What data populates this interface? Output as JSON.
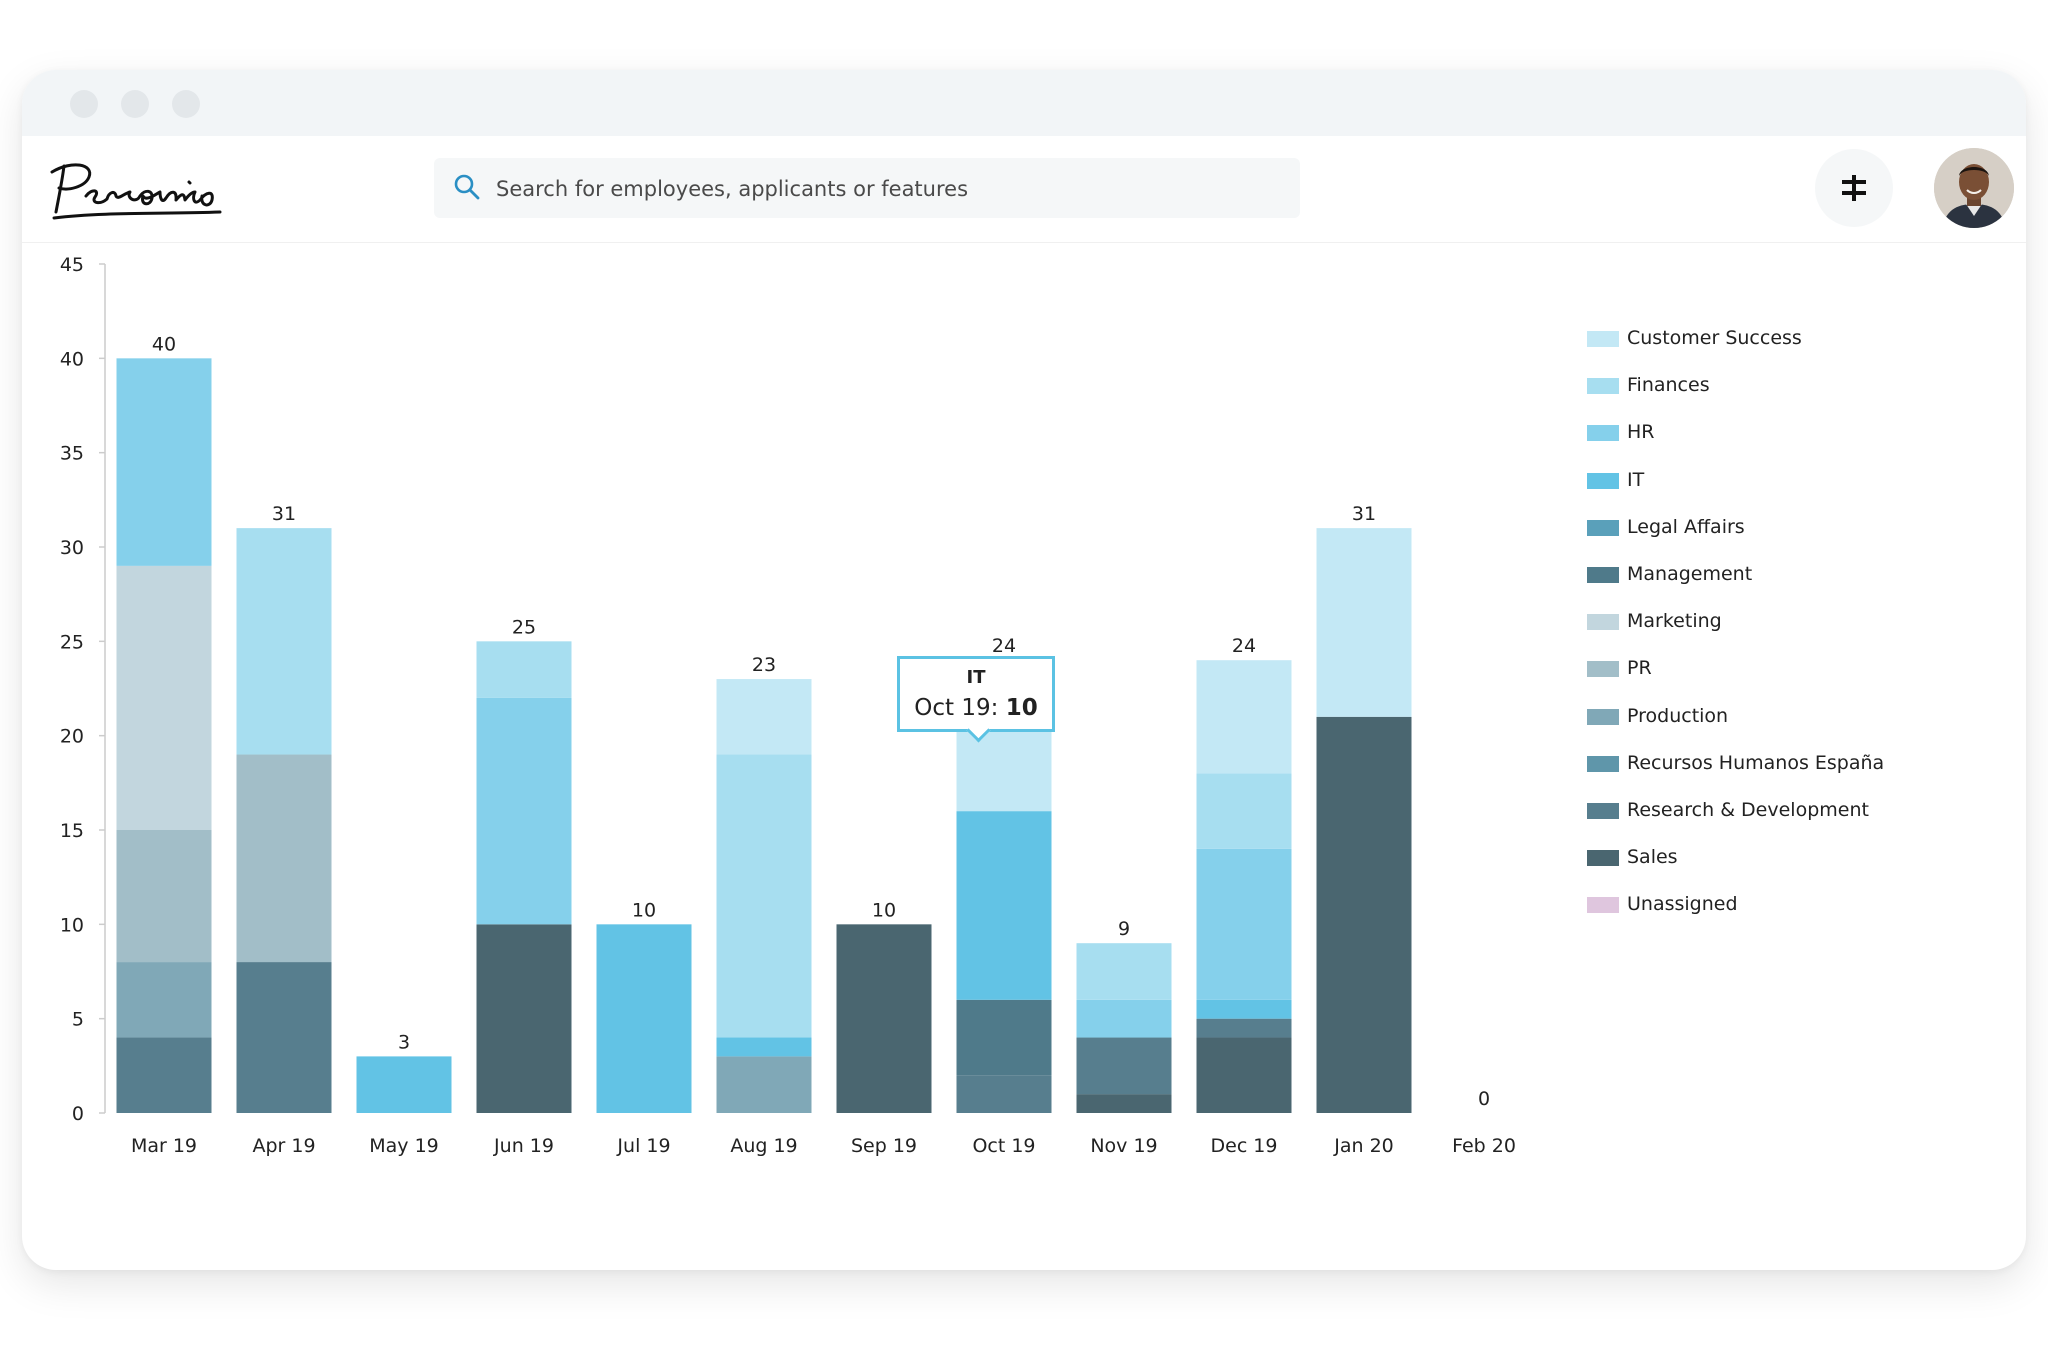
{
  "header": {
    "logo_text": "Personio",
    "search": {
      "placeholder": "Search for employees, applicants or features"
    }
  },
  "icons": {
    "search": "search-icon",
    "settings": "sliders-icon",
    "avatar": "user-avatar",
    "window_controls": "traffic-light-dots"
  },
  "colors": {
    "accent": "#5bc2e3",
    "Customer Success": "#c3e8f5",
    "Finances": "#a7def0",
    "HR": "#85d0eb",
    "IT": "#62c3e5",
    "Legal Affairs": "#5aa0ba",
    "Management": "#4f7a8a",
    "Marketing": "#c2d6de",
    "PR": "#a2bec8",
    "Production": "#80a8b7",
    "Recursos Humanos España": "#5f96aa",
    "Research & Development": "#577e8e",
    "Sales": "#4a6670",
    "Unassigned": "#dfc6de"
  },
  "chart_data": {
    "type": "bar",
    "stacked": true,
    "categories": [
      "Mar 19",
      "Apr 19",
      "May 19",
      "Jun 19",
      "Jul 19",
      "Aug 19",
      "Sep 19",
      "Oct 19",
      "Nov 19",
      "Dec 19",
      "Jan 20",
      "Feb 20"
    ],
    "totals": [
      40,
      31,
      3,
      25,
      10,
      23,
      10,
      24,
      9,
      24,
      31,
      0
    ],
    "series": [
      {
        "name": "Customer Success",
        "values": [
          0,
          0,
          0,
          0,
          0,
          4,
          0,
          8,
          0,
          6,
          10,
          0
        ]
      },
      {
        "name": "Finances",
        "values": [
          0,
          12,
          0,
          3,
          0,
          15,
          0,
          0,
          3,
          4,
          0,
          0
        ]
      },
      {
        "name": "HR",
        "values": [
          11,
          0,
          0,
          12,
          0,
          0,
          0,
          0,
          2,
          8,
          0,
          0
        ]
      },
      {
        "name": "IT",
        "values": [
          0,
          0,
          3,
          0,
          10,
          1,
          0,
          10,
          0,
          1,
          0,
          0
        ]
      },
      {
        "name": "Legal Affairs",
        "values": [
          0,
          0,
          0,
          0,
          0,
          0,
          0,
          0,
          0,
          0,
          0,
          0
        ]
      },
      {
        "name": "Management",
        "values": [
          0,
          0,
          0,
          0,
          0,
          0,
          0,
          4,
          0,
          0,
          0,
          0
        ]
      },
      {
        "name": "Marketing",
        "values": [
          14,
          0,
          0,
          0,
          0,
          0,
          0,
          0,
          0,
          0,
          0,
          0
        ]
      },
      {
        "name": "PR",
        "values": [
          7,
          11,
          0,
          0,
          0,
          0,
          0,
          0,
          0,
          0,
          0,
          0
        ]
      },
      {
        "name": "Production",
        "values": [
          4,
          0,
          0,
          0,
          0,
          3,
          0,
          0,
          0,
          0,
          0,
          0
        ]
      },
      {
        "name": "Recursos Humanos España",
        "values": [
          0,
          0,
          0,
          0,
          0,
          0,
          0,
          0,
          0,
          0,
          0,
          0
        ]
      },
      {
        "name": "Research & Development",
        "values": [
          4,
          8,
          0,
          0,
          0,
          0,
          0,
          2,
          3,
          1,
          0,
          0
        ]
      },
      {
        "name": "Sales",
        "values": [
          0,
          0,
          0,
          10,
          0,
          0,
          10,
          0,
          1,
          4,
          21,
          0
        ]
      },
      {
        "name": "Unassigned",
        "values": [
          0,
          0,
          0,
          0,
          0,
          0,
          0,
          0,
          0,
          0,
          0,
          0
        ]
      }
    ],
    "stack_order_bottom_to_top": [
      "Sales",
      "Research & Development",
      "Management",
      "Production",
      "PR",
      "Marketing",
      "IT",
      "HR",
      "Finances",
      "Customer Success"
    ],
    "ylim": [
      0,
      45
    ],
    "yticks": [
      0,
      5,
      10,
      15,
      20,
      25,
      30,
      35,
      40,
      45
    ],
    "legend": [
      "Customer Success",
      "Finances",
      "HR",
      "IT",
      "Legal Affairs",
      "Management",
      "Marketing",
      "PR",
      "Production",
      "Recursos Humanos España",
      "Research & Development",
      "Sales",
      "Unassigned"
    ],
    "legend_position": "right",
    "tooltip": {
      "series": "IT",
      "category": "Oct 19",
      "value": 10,
      "title": "IT",
      "label": "Oct 19: ",
      "value_text": "10"
    }
  }
}
